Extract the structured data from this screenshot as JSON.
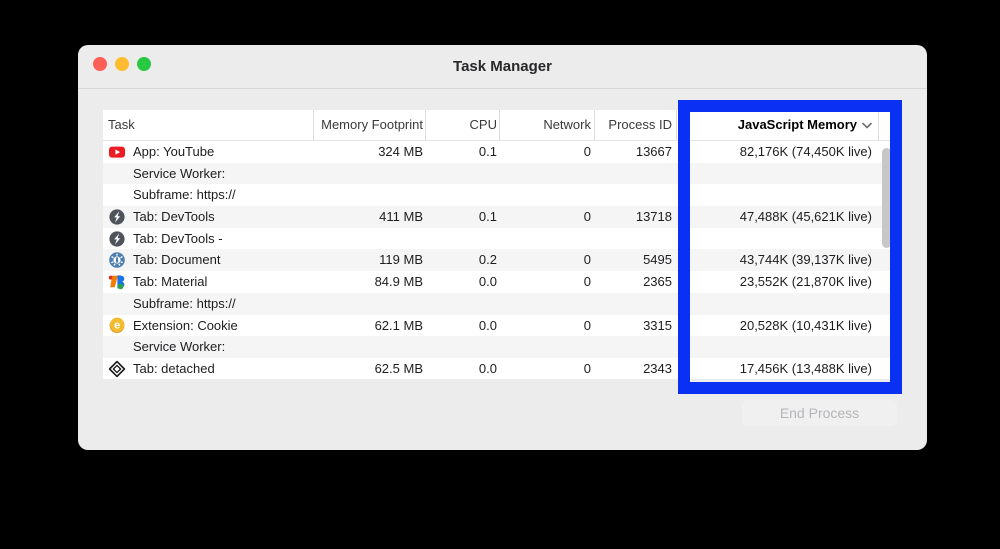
{
  "window": {
    "title": "Task Manager",
    "traffic_light_colors": {
      "close": "#ff5f57",
      "minimize": "#febc2e",
      "zoom": "#28c840"
    }
  },
  "table": {
    "columns": [
      "Task",
      "Memory Footprint",
      "CPU",
      "Network",
      "Process ID",
      "JavaScript Memory"
    ],
    "sort_indicator": "chevron-down-icon",
    "rows": [
      {
        "icon": "youtube-icon",
        "label": "App: YouTube",
        "memory": "324 MB",
        "cpu": "0.1",
        "network": "0",
        "pid": "13667",
        "js": "82,176K (74,450K live)"
      },
      {
        "icon": null,
        "label": "Service Worker:",
        "memory": "",
        "cpu": "",
        "network": "",
        "pid": "",
        "js": ""
      },
      {
        "icon": null,
        "label": "Subframe: https://",
        "memory": "",
        "cpu": "",
        "network": "",
        "pid": "",
        "js": ""
      },
      {
        "icon": "devtools-icon",
        "label": "Tab: DevTools",
        "memory": "411 MB",
        "cpu": "0.1",
        "network": "0",
        "pid": "13718",
        "js": "47,488K (45,621K live)"
      },
      {
        "icon": "devtools-icon",
        "label": "Tab: DevTools -",
        "memory": "",
        "cpu": "",
        "network": "",
        "pid": "",
        "js": ""
      },
      {
        "icon": "bug-icon",
        "label": "Tab: Document",
        "memory": "119 MB",
        "cpu": "0.2",
        "network": "0",
        "pid": "5495",
        "js": "43,744K (39,137K live)"
      },
      {
        "icon": "material-icon",
        "label": "Tab: Material",
        "memory": "84.9 MB",
        "cpu": "0.0",
        "network": "0",
        "pid": "2365",
        "js": "23,552K (21,870K live)"
      },
      {
        "icon": null,
        "label": "Subframe: https://",
        "memory": "",
        "cpu": "",
        "network": "",
        "pid": "",
        "js": ""
      },
      {
        "icon": "cookie-icon",
        "label": "Extension: Cookie",
        "memory": "62.1 MB",
        "cpu": "0.0",
        "network": "0",
        "pid": "3315",
        "js": "20,528K (10,431K live)"
      },
      {
        "icon": null,
        "label": "Service Worker:",
        "memory": "",
        "cpu": "",
        "network": "",
        "pid": "",
        "js": ""
      },
      {
        "icon": "cube-icon",
        "label": "Tab: detached",
        "memory": "62.5 MB",
        "cpu": "0.0",
        "network": "0",
        "pid": "2343",
        "js": "17,456K (13,488K live)"
      }
    ]
  },
  "footer": {
    "end_process_label": "End Process"
  },
  "highlight": {
    "color": "#0a31f3",
    "column": "JavaScript Memory"
  }
}
